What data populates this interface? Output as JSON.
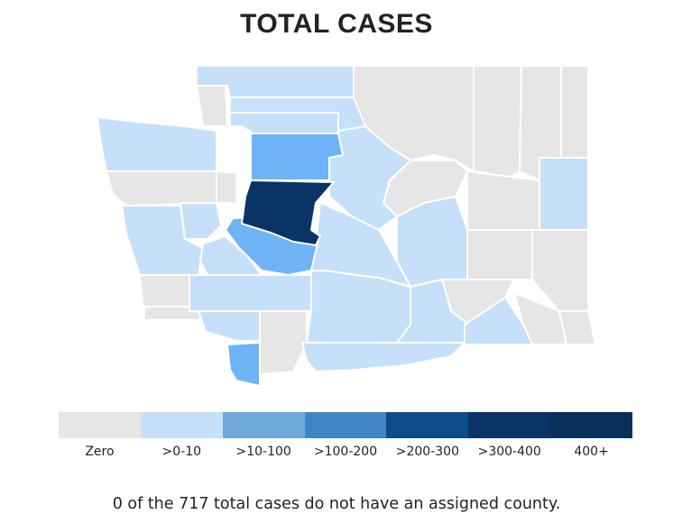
{
  "title": "TOTAL CASES",
  "footnote": "0 of the 717 total cases do not have an assigned county.",
  "colors": {
    "zero": "#e6e6e6",
    "b1": "#c6e0fa",
    "b2": "#6fa8da",
    "b3": "#3f86c6",
    "b4": "#0e4d8d",
    "b5": "#0a3466",
    "b6": "#09305a"
  },
  "legend": [
    {
      "label": "Zero",
      "color": "#e6e6e6"
    },
    {
      "label": ">0-10",
      "color": "#c6e0fa"
    },
    {
      "label": ">10-100",
      "color": "#6fa8da"
    },
    {
      "label": ">100-200",
      "color": "#3f86c6"
    },
    {
      "label": ">200-300",
      "color": "#0e4d8d"
    },
    {
      "label": ">300-400",
      "color": "#0a3466"
    },
    {
      "label": "400+",
      "color": "#09305a"
    }
  ]
}
